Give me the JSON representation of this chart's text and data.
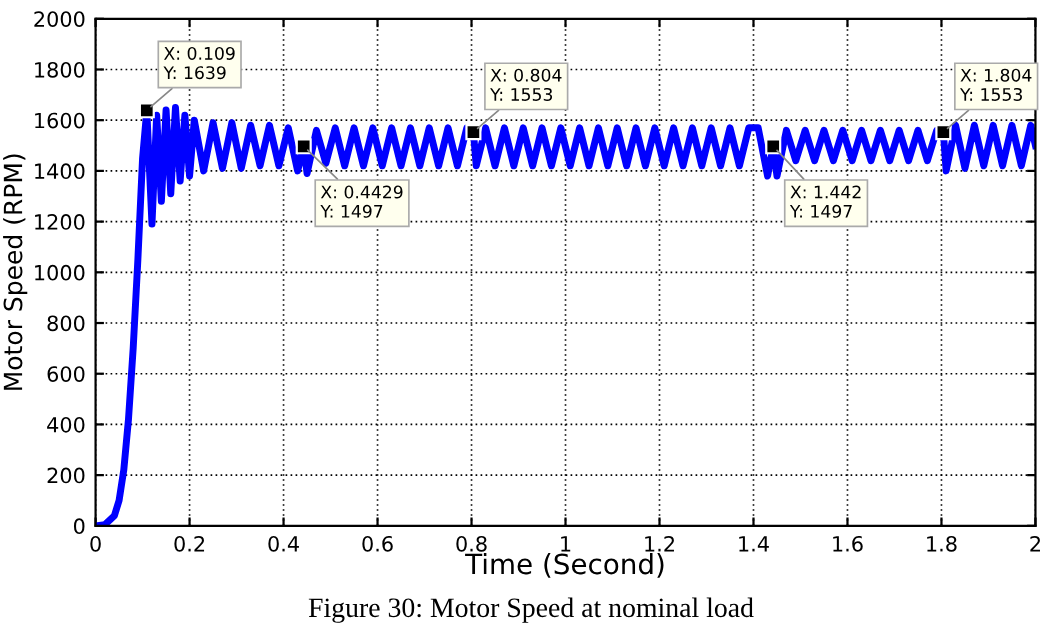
{
  "chart_data": {
    "type": "line",
    "xlabel": "Time (Second)",
    "ylabel": "Motor Speed (RPM)",
    "xlim": [
      0,
      2
    ],
    "ylim": [
      0,
      2000
    ],
    "xticks": [
      0,
      0.2,
      0.4,
      0.6,
      0.8,
      1,
      1.2,
      1.4,
      1.6,
      1.8,
      2
    ],
    "yticks": [
      0,
      200,
      400,
      600,
      800,
      1000,
      1200,
      1400,
      1600,
      1800,
      2000
    ],
    "grid": true,
    "line_style": "solid",
    "marker": "none",
    "series": [
      {
        "color": "#0000ff",
        "x": [
          0,
          0.02,
          0.04,
          0.05,
          0.06,
          0.07,
          0.08,
          0.09,
          0.1,
          0.109,
          0.12,
          0.13,
          0.14,
          0.15,
          0.16,
          0.17,
          0.18,
          0.19,
          0.2,
          0.21,
          0.23,
          0.25,
          0.27,
          0.29,
          0.31,
          0.33,
          0.35,
          0.37,
          0.39,
          0.41,
          0.43,
          0.4429,
          0.45,
          0.47,
          0.49,
          0.51,
          0.53,
          0.55,
          0.57,
          0.59,
          0.61,
          0.63,
          0.65,
          0.67,
          0.69,
          0.71,
          0.73,
          0.75,
          0.77,
          0.79,
          0.804,
          0.81,
          0.83,
          0.85,
          0.87,
          0.89,
          0.91,
          0.93,
          0.95,
          0.97,
          0.99,
          1.01,
          1.03,
          1.05,
          1.07,
          1.09,
          1.11,
          1.13,
          1.15,
          1.17,
          1.19,
          1.21,
          1.23,
          1.25,
          1.27,
          1.29,
          1.31,
          1.33,
          1.35,
          1.37,
          1.39,
          1.41,
          1.43,
          1.442,
          1.45,
          1.47,
          1.49,
          1.51,
          1.53,
          1.55,
          1.57,
          1.59,
          1.61,
          1.63,
          1.65,
          1.67,
          1.69,
          1.71,
          1.73,
          1.75,
          1.77,
          1.79,
          1.804,
          1.81,
          1.83,
          1.85,
          1.87,
          1.89,
          1.91,
          1.93,
          1.95,
          1.97,
          1.99,
          2.0
        ],
        "values": [
          0,
          5,
          40,
          100,
          220,
          420,
          700,
          1050,
          1450,
          1639,
          1190,
          1620,
          1280,
          1640,
          1310,
          1650,
          1360,
          1620,
          1380,
          1600,
          1400,
          1590,
          1410,
          1590,
          1410,
          1580,
          1420,
          1580,
          1420,
          1570,
          1400,
          1497,
          1390,
          1560,
          1430,
          1570,
          1420,
          1570,
          1420,
          1570,
          1420,
          1570,
          1420,
          1570,
          1420,
          1570,
          1420,
          1570,
          1420,
          1570,
          1553,
          1420,
          1570,
          1420,
          1570,
          1420,
          1570,
          1420,
          1570,
          1420,
          1570,
          1420,
          1570,
          1420,
          1570,
          1420,
          1570,
          1420,
          1570,
          1420,
          1570,
          1420,
          1570,
          1420,
          1570,
          1420,
          1570,
          1420,
          1570,
          1420,
          1570,
          1570,
          1380,
          1497,
          1380,
          1560,
          1440,
          1560,
          1440,
          1560,
          1440,
          1560,
          1440,
          1560,
          1440,
          1560,
          1440,
          1560,
          1440,
          1560,
          1440,
          1560,
          1553,
          1400,
          1580,
          1410,
          1580,
          1420,
          1580,
          1420,
          1580,
          1420,
          1580,
          1500
        ]
      }
    ],
    "annotations": [
      {
        "text": "X: 0.109\nY: 1639",
        "x": 0.109,
        "y": 1639
      },
      {
        "text": "X: 0.4429\nY: 1497",
        "x": 0.4429,
        "y": 1497
      },
      {
        "text": "X: 0.804\nY: 1553",
        "x": 0.804,
        "y": 1553
      },
      {
        "text": "X: 1.442\nY: 1497",
        "x": 1.442,
        "y": 1497
      },
      {
        "text": "X: 1.804\nY: 1553",
        "x": 1.804,
        "y": 1553
      },
      "Figure 30: Motor Speed at nominal load"
    ]
  }
}
